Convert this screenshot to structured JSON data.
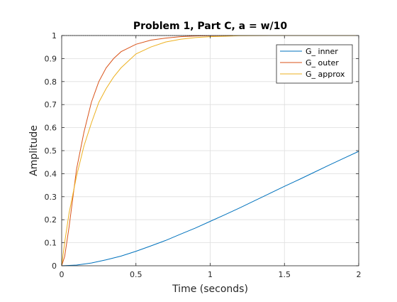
{
  "chart_data": {
    "type": "line",
    "title": "Problem 1, Part C, a = w/10",
    "xlabel": "Time (seconds)",
    "ylabel": "Amplitude",
    "xlim": [
      0,
      2
    ],
    "ylim": [
      0,
      1
    ],
    "xticks": [
      0,
      0.5,
      1,
      1.5,
      2
    ],
    "xtick_labels": [
      "0",
      "0.5",
      "1",
      "1.5",
      "2"
    ],
    "yticks": [
      0,
      0.1,
      0.2,
      0.3,
      0.4,
      0.5,
      0.6,
      0.7,
      0.8,
      0.9,
      1
    ],
    "ytick_labels": [
      "0",
      "0.1",
      "0.2",
      "0.3",
      "0.4",
      "0.5",
      "0.6",
      "0.7",
      "0.8",
      "0.9",
      "1"
    ],
    "grid": true,
    "legend_position": "top-right",
    "series": [
      {
        "name": "G_ inner",
        "color": "#0072bd",
        "x": [
          0,
          0.1,
          0.2,
          0.3,
          0.4,
          0.5,
          0.6,
          0.7,
          0.8,
          0.9,
          1.0,
          1.1,
          1.2,
          1.3,
          1.4,
          1.5,
          1.6,
          1.7,
          1.8,
          1.9,
          2.0
        ],
        "y": [
          0,
          0.003,
          0.012,
          0.026,
          0.042,
          0.063,
          0.086,
          0.11,
          0.137,
          0.164,
          0.193,
          0.222,
          0.252,
          0.283,
          0.314,
          0.345,
          0.375,
          0.406,
          0.437,
          0.467,
          0.497
        ]
      },
      {
        "name": "G_ outer",
        "color": "#d95319",
        "x": [
          0,
          0.02,
          0.05,
          0.1,
          0.15,
          0.2,
          0.25,
          0.3,
          0.35,
          0.4,
          0.5,
          0.6,
          0.7,
          0.8,
          0.9,
          1.0,
          1.15
        ],
        "y": [
          0,
          0.04,
          0.17,
          0.42,
          0.58,
          0.71,
          0.8,
          0.86,
          0.9,
          0.93,
          0.962,
          0.98,
          0.989,
          0.995,
          0.998,
          0.999,
          1.0
        ]
      },
      {
        "name": "G_ approx",
        "color": "#edb120",
        "x": [
          0,
          0.02,
          0.05,
          0.1,
          0.15,
          0.2,
          0.25,
          0.3,
          0.35,
          0.4,
          0.5,
          0.6,
          0.7,
          0.8,
          0.9,
          1.0,
          1.1,
          1.2,
          1.4,
          1.6,
          1.8,
          2.0
        ],
        "y": [
          0,
          0.1,
          0.23,
          0.39,
          0.52,
          0.62,
          0.71,
          0.77,
          0.82,
          0.86,
          0.92,
          0.95,
          0.972,
          0.984,
          0.991,
          0.995,
          0.997,
          0.999,
          1.0,
          1.0,
          1.0,
          1.0
        ]
      }
    ],
    "reference_line": {
      "y": 1,
      "style": "dotted",
      "color": "#000000"
    }
  }
}
